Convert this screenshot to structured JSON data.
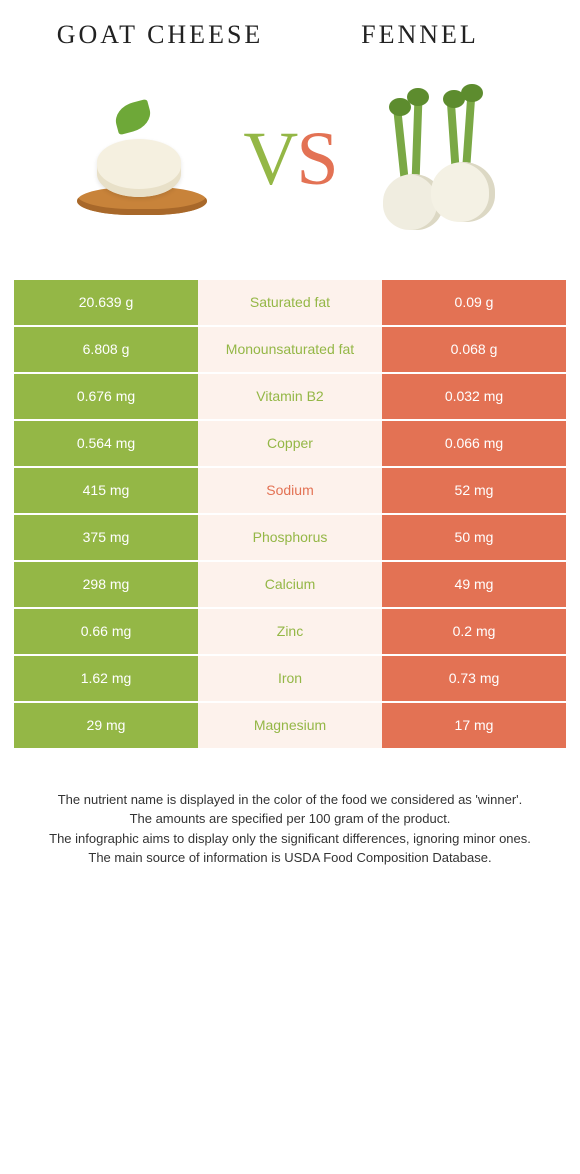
{
  "left_name": "GOAT CHEESE",
  "right_name": "FENNEL",
  "vs_v": "V",
  "vs_s": "S",
  "colors": {
    "green": "#94b746",
    "orange": "#e37254",
    "mid_bg": "#fdf2ec"
  },
  "rows": [
    {
      "left": "20.639 g",
      "label": "Saturated fat",
      "right": "0.09 g",
      "winner": "left"
    },
    {
      "left": "6.808 g",
      "label": "Monounsaturated fat",
      "right": "0.068 g",
      "winner": "left"
    },
    {
      "left": "0.676 mg",
      "label": "Vitamin B2",
      "right": "0.032 mg",
      "winner": "left"
    },
    {
      "left": "0.564 mg",
      "label": "Copper",
      "right": "0.066 mg",
      "winner": "left"
    },
    {
      "left": "415 mg",
      "label": "Sodium",
      "right": "52 mg",
      "winner": "right"
    },
    {
      "left": "375 mg",
      "label": "Phosphorus",
      "right": "50 mg",
      "winner": "left"
    },
    {
      "left": "298 mg",
      "label": "Calcium",
      "right": "49 mg",
      "winner": "left"
    },
    {
      "left": "0.66 mg",
      "label": "Zinc",
      "right": "0.2 mg",
      "winner": "left"
    },
    {
      "left": "1.62 mg",
      "label": "Iron",
      "right": "0.73 mg",
      "winner": "left"
    },
    {
      "left": "29 mg",
      "label": "Magnesium",
      "right": "17 mg",
      "winner": "left"
    }
  ],
  "footer_lines": [
    "The nutrient name is displayed in the color of the food we considered as 'winner'.",
    "The amounts are specified per 100 gram of the product.",
    "The infographic aims to display only the significant differences, ignoring minor ones.",
    "The main source of information is USDA Food Composition Database."
  ]
}
